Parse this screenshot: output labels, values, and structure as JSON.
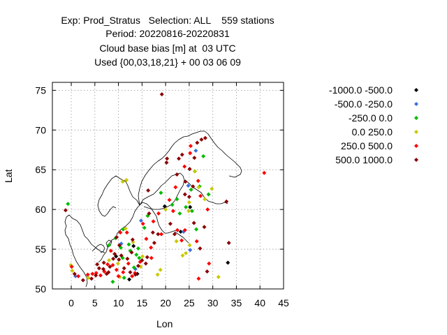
{
  "chart_data": {
    "type": "scatter",
    "title_lines": [
      "Exp: Prod_Stratus   Selection: ALL    559 stations",
      "Period: 20220816-20220831",
      "Cloud base bias [m] at  03 UTC",
      "Used {00,03,18,21} + 00 03 06 09"
    ],
    "xlabel": "Lon",
    "ylabel": "Lat",
    "xlim": [
      -4,
      45
    ],
    "ylim": [
      50,
      76
    ],
    "x_ticks": [
      0,
      5,
      10,
      15,
      20,
      25,
      30,
      35,
      40,
      45
    ],
    "y_ticks": [
      50,
      55,
      60,
      65,
      70,
      75
    ],
    "grid": true,
    "legend_position": "right",
    "series": [
      {
        "name": "-1000.0 -500.0",
        "color": "#000000",
        "points": [
          [
            9.5,
            54.1
          ],
          [
            12.3,
            51.2
          ],
          [
            14.0,
            51.9
          ],
          [
            19.8,
            60.4
          ],
          [
            25.2,
            60.3
          ],
          [
            33.2,
            53.3
          ],
          [
            13.2,
            55.4
          ],
          [
            23.2,
            57.2
          ]
        ]
      },
      {
        "name": "-500.0 -250.0",
        "color": "#3a70e0",
        "points": [
          [
            0.9,
            51.6
          ],
          [
            10.6,
            55.7
          ],
          [
            13.6,
            52.5
          ],
          [
            24.8,
            63.0
          ],
          [
            26.4,
            67.4
          ],
          [
            23.8,
            57.2
          ],
          [
            25.2,
            54.9
          ],
          [
            14.8,
            58.6
          ]
        ]
      },
      {
        "name": "-250.0 0.0",
        "color": "#00bb00",
        "points": [
          [
            -0.7,
            60.7
          ],
          [
            8.0,
            55.5
          ],
          [
            9.4,
            56.4
          ],
          [
            10.5,
            55.2
          ],
          [
            11.0,
            57.5
          ],
          [
            12.2,
            55.6
          ],
          [
            14.2,
            55.1
          ],
          [
            15.5,
            57.7
          ],
          [
            16.2,
            59.2
          ],
          [
            19.0,
            62.1
          ],
          [
            21.4,
            60.6
          ],
          [
            23.0,
            59.5
          ],
          [
            24.3,
            60.3
          ],
          [
            25.4,
            62.5
          ],
          [
            26.2,
            64.8
          ],
          [
            27.2,
            62.9
          ],
          [
            28.0,
            66.7
          ],
          [
            29.1,
            61.9
          ],
          [
            25.6,
            59.8
          ],
          [
            22.4,
            61.3
          ],
          [
            26.5,
            57.5
          ],
          [
            10.9,
            53.9
          ],
          [
            13.3,
            52.7
          ],
          [
            14.4,
            53.9
          ],
          [
            8.8,
            50.9
          ],
          [
            11.2,
            51.4
          ],
          [
            13.8,
            54.3
          ],
          [
            12.5,
            54.8
          ]
        ]
      },
      {
        "name": "0.0 250.0",
        "color": "#c8c800",
        "points": [
          [
            -0.1,
            53.0
          ],
          [
            0.2,
            52.3
          ],
          [
            3.6,
            51.4
          ],
          [
            8.0,
            53.6
          ],
          [
            9.9,
            53.2
          ],
          [
            10.9,
            63.5
          ],
          [
            11.7,
            63.7
          ],
          [
            15.1,
            54.1
          ],
          [
            18.3,
            51.8
          ],
          [
            18.9,
            52.4
          ],
          [
            20.0,
            60.0
          ],
          [
            22.3,
            56.0
          ],
          [
            23.6,
            54.2
          ],
          [
            24.3,
            54.5
          ],
          [
            24.9,
            59.8
          ],
          [
            25.0,
            60.9
          ],
          [
            26.2,
            64.8
          ],
          [
            27.0,
            62.8
          ],
          [
            28.3,
            61.3
          ],
          [
            29.8,
            62.6
          ],
          [
            31.2,
            51.5
          ],
          [
            25.1,
            55.5
          ],
          [
            11.5,
            57.6
          ],
          [
            13.1,
            55.9
          ],
          [
            14.7,
            52.8
          ],
          [
            10.3,
            51.5
          ]
        ]
      },
      {
        "name": "250.0 500.0",
        "color": "#ff0000",
        "points": [
          [
            0.1,
            52.8
          ],
          [
            1.5,
            51.6
          ],
          [
            3.5,
            51.8
          ],
          [
            4.5,
            51.9
          ],
          [
            5.3,
            52.0
          ],
          [
            6.2,
            51.7
          ],
          [
            7.0,
            52.2
          ],
          [
            7.7,
            53.1
          ],
          [
            8.8,
            53.0
          ],
          [
            9.6,
            52.4
          ],
          [
            10.0,
            51.6
          ],
          [
            11.0,
            52.1
          ],
          [
            12.1,
            53.2
          ],
          [
            12.9,
            51.6
          ],
          [
            13.5,
            52.0
          ],
          [
            14.6,
            53.4
          ],
          [
            15.9,
            56.3
          ],
          [
            16.9,
            55.2
          ],
          [
            17.4,
            58.5
          ],
          [
            18.5,
            59.5
          ],
          [
            20.8,
            61.2
          ],
          [
            22.1,
            62.8
          ],
          [
            22.5,
            57.4
          ],
          [
            23.4,
            56.1
          ],
          [
            24.1,
            57.4
          ],
          [
            25.2,
            67.1
          ],
          [
            25.3,
            68.0
          ],
          [
            26.6,
            56.0
          ],
          [
            27.4,
            61.7
          ],
          [
            28.9,
            60.0
          ],
          [
            27.0,
            51.3
          ],
          [
            29.2,
            53.2
          ],
          [
            40.9,
            64.6
          ],
          [
            26.9,
            63.6
          ],
          [
            24.0,
            65.4
          ],
          [
            21.6,
            59.8
          ],
          [
            15.2,
            58.2
          ],
          [
            10.4,
            57.1
          ],
          [
            8.4,
            54.8
          ],
          [
            19.1,
            56.9
          ],
          [
            17.0,
            53.9
          ],
          [
            11.8,
            57.1
          ]
        ]
      },
      {
        "name": "500.0 1000.0",
        "color": "#8b0000",
        "points": [
          [
            -1.2,
            59.9
          ],
          [
            0.7,
            51.9
          ],
          [
            2.5,
            51.1
          ],
          [
            4.3,
            51.3
          ],
          [
            5.2,
            51.7
          ],
          [
            5.9,
            52.6
          ],
          [
            6.8,
            52.5
          ],
          [
            7.5,
            51.9
          ],
          [
            8.2,
            52.8
          ],
          [
            8.9,
            53.8
          ],
          [
            9.2,
            54.4
          ],
          [
            10.1,
            53.7
          ],
          [
            10.6,
            54.2
          ],
          [
            11.2,
            52.6
          ],
          [
            11.9,
            53.8
          ],
          [
            12.5,
            52.1
          ],
          [
            13.6,
            51.8
          ],
          [
            14.2,
            52.9
          ],
          [
            15.0,
            53.6
          ],
          [
            15.8,
            53.2
          ],
          [
            16.1,
            54.0
          ],
          [
            16.5,
            59.5
          ],
          [
            17.3,
            57.1
          ],
          [
            17.6,
            55.8
          ],
          [
            18.4,
            56.9
          ],
          [
            19.2,
            74.5
          ],
          [
            20.2,
            65.9
          ],
          [
            20.3,
            66.4
          ],
          [
            21.0,
            58.2
          ],
          [
            21.9,
            56.9
          ],
          [
            22.4,
            64.4
          ],
          [
            22.8,
            66.4
          ],
          [
            23.5,
            66.9
          ],
          [
            24.1,
            61.9
          ],
          [
            25.0,
            61.6
          ],
          [
            25.1,
            65.1
          ],
          [
            25.8,
            62.9
          ],
          [
            26.1,
            66.5
          ],
          [
            26.7,
            68.4
          ],
          [
            27.6,
            68.8
          ],
          [
            28.4,
            69.0
          ],
          [
            28.2,
            57.8
          ],
          [
            28.8,
            52.2
          ],
          [
            32.9,
            61.0
          ],
          [
            33.4,
            55.8
          ],
          [
            27.3,
            55.1
          ],
          [
            26.0,
            58.3
          ],
          [
            24.2,
            63.5
          ],
          [
            16.3,
            62.4
          ],
          [
            13.0,
            56.2
          ],
          [
            9.6,
            56.5
          ],
          [
            10.2,
            55.5
          ],
          [
            6.9,
            53.3
          ],
          [
            5.5,
            53.1
          ],
          [
            12.8,
            54.6
          ],
          [
            7.9,
            52.1
          ]
        ]
      }
    ]
  }
}
